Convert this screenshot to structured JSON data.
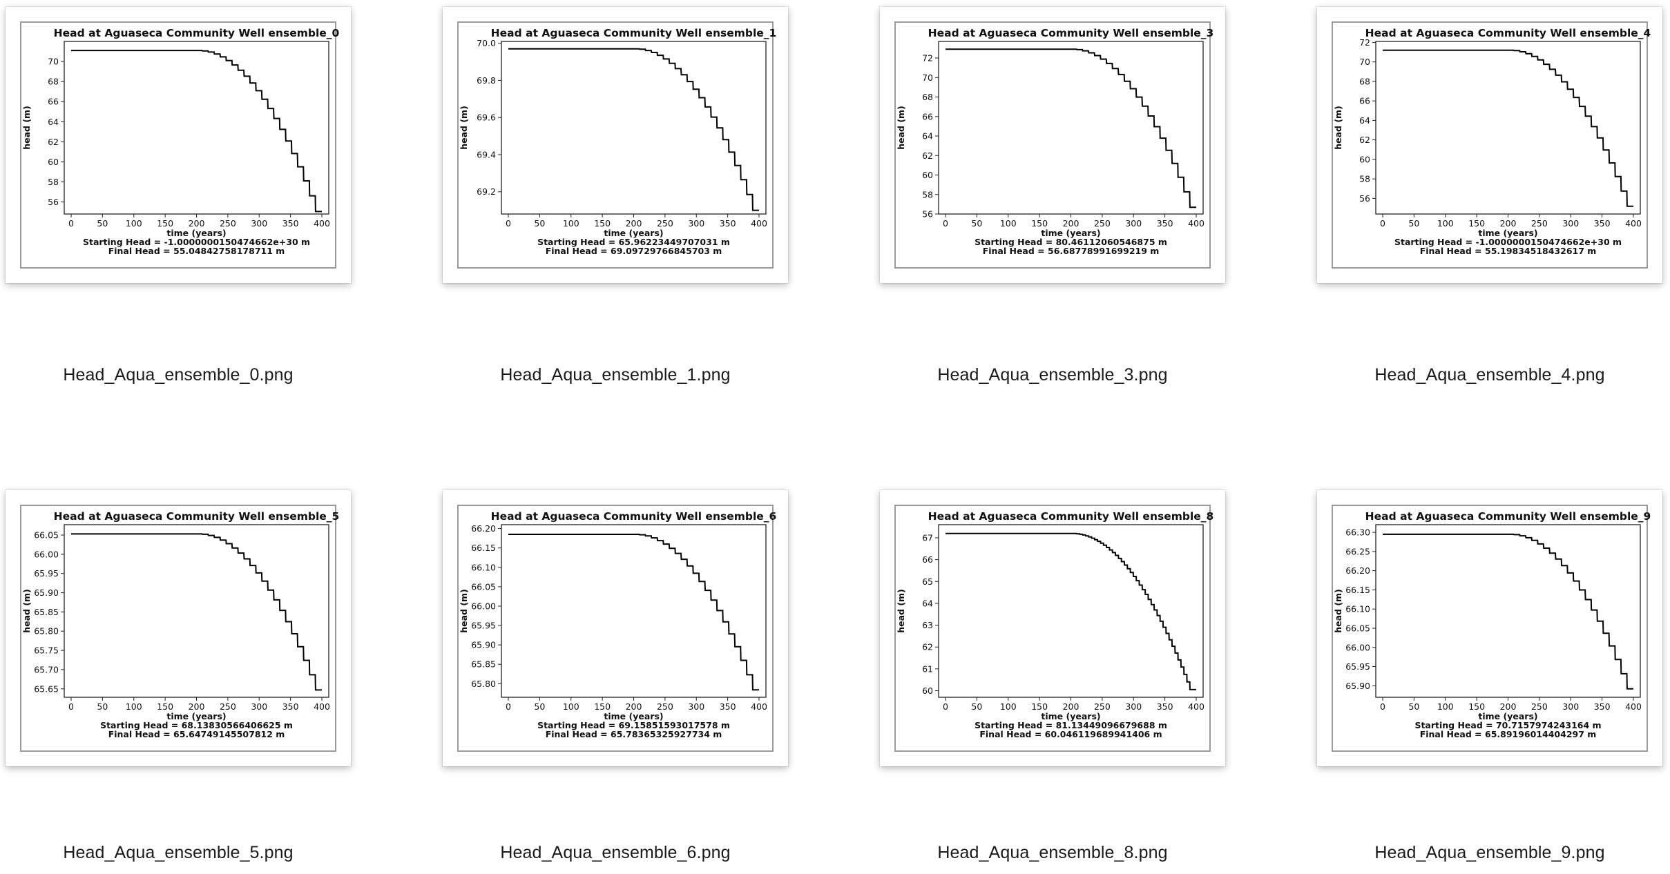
{
  "files": [
    {
      "file_name": "Head_Aqua_ensemble_0.png",
      "plot_title": "Head at Aguaseca Community Well ensemble_0",
      "xlabel": "time (years)",
      "ylabel": "head (m)",
      "x_ticks": [
        "0",
        "50",
        "100",
        "150",
        "200",
        "250",
        "300",
        "350",
        "400"
      ],
      "y_ticks": [
        "56",
        "58",
        "60",
        "62",
        "64",
        "66",
        "68",
        "70"
      ],
      "starting_head": "Starting Head = -1.0000000150474662e+30 m",
      "final_head": "Final Head = 55.04842758178711 m",
      "chart_data": {
        "type": "line",
        "x_range": [
          0,
          400
        ],
        "y_range": [
          54.8,
          72.0
        ],
        "flat_value": 71.1,
        "decline_start_x": 200,
        "final_value": 55.05,
        "steps": 20
      }
    },
    {
      "file_name": "Head_Aqua_ensemble_1.png",
      "plot_title": "Head at Aguaseca Community Well ensemble_1",
      "xlabel": "time (years)",
      "ylabel": "head (m)",
      "x_ticks": [
        "0",
        "50",
        "100",
        "150",
        "200",
        "250",
        "300",
        "350",
        "400"
      ],
      "y_ticks": [
        "69.2",
        "69.4",
        "69.6",
        "69.8",
        "70.0"
      ],
      "starting_head": "Starting Head = 65.96223449707031 m",
      "final_head": "Final Head = 69.09729766845703 m",
      "chart_data": {
        "type": "line",
        "x_range": [
          0,
          400
        ],
        "y_range": [
          69.08,
          70.01
        ],
        "flat_value": 69.97,
        "decline_start_x": 200,
        "final_value": 69.1,
        "steps": 20
      }
    },
    {
      "file_name": "Head_Aqua_ensemble_3.png",
      "plot_title": "Head at Aguaseca Community Well ensemble_3",
      "xlabel": "time (years)",
      "ylabel": "head (m)",
      "x_ticks": [
        "0",
        "50",
        "100",
        "150",
        "200",
        "250",
        "300",
        "350",
        "400"
      ],
      "y_ticks": [
        "56",
        "58",
        "60",
        "62",
        "64",
        "66",
        "68",
        "70",
        "72"
      ],
      "starting_head": "Starting Head = 80.46112060546875 m",
      "final_head": "Final Head = 56.68778991699219 m",
      "chart_data": {
        "type": "line",
        "x_range": [
          0,
          400
        ],
        "y_range": [
          56.0,
          73.7
        ],
        "flat_value": 72.9,
        "decline_start_x": 200,
        "final_value": 56.69,
        "steps": 20
      }
    },
    {
      "file_name": "Head_Aqua_ensemble_4.png",
      "plot_title": "Head at Aguaseca Community Well ensemble_4",
      "xlabel": "time (years)",
      "ylabel": "head (m)",
      "x_ticks": [
        "0",
        "50",
        "100",
        "150",
        "200",
        "250",
        "300",
        "350",
        "400"
      ],
      "y_ticks": [
        "56",
        "58",
        "60",
        "62",
        "64",
        "66",
        "68",
        "70",
        "72"
      ],
      "starting_head": "Starting Head = -1.0000000150474662e+30 m",
      "final_head": "Final Head = 55.19834518432617 m",
      "chart_data": {
        "type": "line",
        "x_range": [
          0,
          400
        ],
        "y_range": [
          54.4,
          72.1
        ],
        "flat_value": 71.2,
        "decline_start_x": 200,
        "final_value": 55.2,
        "steps": 20
      }
    },
    {
      "file_name": "Head_Aqua_ensemble_5.png",
      "plot_title": "Head at Aguaseca Community Well ensemble_5",
      "xlabel": "time (years)",
      "ylabel": "head (m)",
      "x_ticks": [
        "0",
        "50",
        "100",
        "150",
        "200",
        "250",
        "300",
        "350",
        "400"
      ],
      "y_ticks": [
        "65.65",
        "65.70",
        "65.75",
        "65.80",
        "65.85",
        "65.90",
        "65.95",
        "66.00",
        "66.05"
      ],
      "starting_head": "Starting Head = 68.13830566406625 m",
      "final_head": "Final Head = 65.64749145507812 m",
      "chart_data": {
        "type": "line",
        "x_range": [
          0,
          400
        ],
        "y_range": [
          65.628,
          66.077
        ],
        "flat_value": 66.053,
        "decline_start_x": 200,
        "final_value": 65.647,
        "steps": 20
      }
    },
    {
      "file_name": "Head_Aqua_ensemble_6.png",
      "plot_title": "Head at Aguaseca Community Well ensemble_6",
      "xlabel": "time (years)",
      "ylabel": "head (m)",
      "x_ticks": [
        "0",
        "50",
        "100",
        "150",
        "200",
        "250",
        "300",
        "350",
        "400"
      ],
      "y_ticks": [
        "65.80",
        "65.85",
        "65.90",
        "65.95",
        "66.00",
        "66.05",
        "66.10",
        "66.15",
        "66.20"
      ],
      "starting_head": "Starting Head = 69.15851593017578 m",
      "final_head": "Final Head = 65.78365325927734 m",
      "chart_data": {
        "type": "line",
        "x_range": [
          0,
          400
        ],
        "y_range": [
          65.765,
          66.21
        ],
        "flat_value": 66.185,
        "decline_start_x": 200,
        "final_value": 65.784,
        "steps": 20
      }
    },
    {
      "file_name": "Head_Aqua_ensemble_8.png",
      "plot_title": "Head at Aguaseca Community Well ensemble_8",
      "xlabel": "time (years)",
      "ylabel": "head (m)",
      "x_ticks": [
        "0",
        "50",
        "100",
        "150",
        "200",
        "250",
        "300",
        "350",
        "400"
      ],
      "y_ticks": [
        "60",
        "61",
        "62",
        "63",
        "64",
        "65",
        "66",
        "67"
      ],
      "starting_head": "Starting Head = 81.13449096679688 m",
      "final_head": "Final Head = 60.046119689941406 m",
      "chart_data": {
        "type": "line",
        "x_range": [
          0,
          400
        ],
        "y_range": [
          59.7,
          67.6
        ],
        "flat_value": 67.2,
        "decline_start_x": 200,
        "final_value": 60.05,
        "steps": 40
      }
    },
    {
      "file_name": "Head_Aqua_ensemble_9.png",
      "plot_title": "Head at Aguaseca Community Well ensemble_9",
      "xlabel": "time (years)",
      "ylabel": "head (m)",
      "x_ticks": [
        "0",
        "50",
        "100",
        "150",
        "200",
        "250",
        "300",
        "350",
        "400"
      ],
      "y_ticks": [
        "65.90",
        "65.95",
        "66.00",
        "66.05",
        "66.10",
        "66.15",
        "66.20",
        "66.25",
        "66.30"
      ],
      "starting_head": "Starting Head = 70.7157974243164 m",
      "final_head": "Final Head = 65.89196014404297 m",
      "chart_data": {
        "type": "line",
        "x_range": [
          0,
          400
        ],
        "y_range": [
          65.87,
          66.32
        ],
        "flat_value": 66.295,
        "decline_start_x": 200,
        "final_value": 65.892,
        "steps": 20
      }
    }
  ]
}
